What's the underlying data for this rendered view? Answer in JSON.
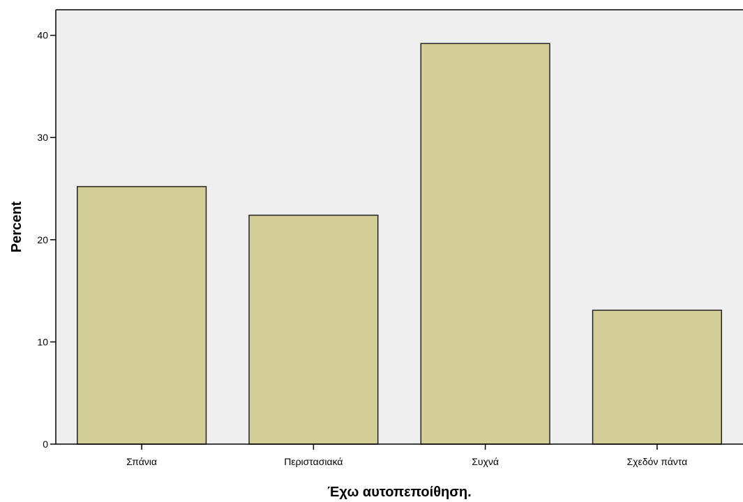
{
  "chart_data": {
    "type": "bar",
    "title": "",
    "xlabel": "Έχω αυτοπεποίθηση.",
    "ylabel": "Percent",
    "categories": [
      "Σπάνια",
      "Περιστασιακά",
      "Συχνά",
      "Σχεδόν πάντα"
    ],
    "values": [
      25.2,
      22.4,
      39.2,
      13.1
    ],
    "ylim": [
      0,
      42.5
    ],
    "yticks": [
      "0",
      "10",
      "20",
      "30",
      "40"
    ],
    "grid": false,
    "legend": "none",
    "colors": {
      "bar_fill": "#d3cd97",
      "bar_stroke": "#222222",
      "plot_background": "#efefef",
      "axis": "#000000"
    }
  }
}
